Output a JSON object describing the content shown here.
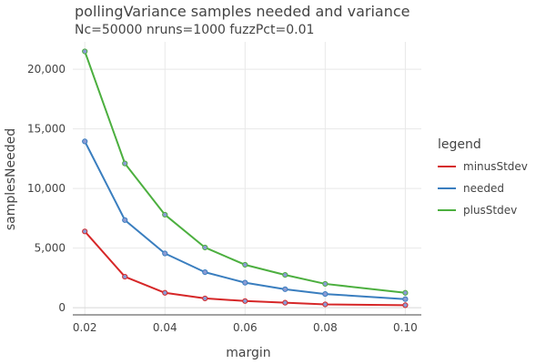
{
  "chart_data": {
    "type": "line",
    "title": "pollingVariance samples needed and variance",
    "subtitle": "Nc=50000 nruns=1000 fuzzPct=0.01",
    "xlabel": "margin",
    "ylabel": "samplesNeeded",
    "xlim": [
      0.017,
      0.104
    ],
    "ylim": [
      -600,
      22300
    ],
    "x_ticks": [
      0.02,
      0.04,
      0.06,
      0.08,
      0.1
    ],
    "x_tick_labels": [
      "0.02",
      "0.04",
      "0.06",
      "0.08",
      "0.10"
    ],
    "y_ticks": [
      0,
      5000,
      10000,
      15000,
      20000
    ],
    "y_tick_labels": [
      "0",
      "5,000",
      "10,000",
      "15,000",
      "20,000"
    ],
    "grid": true,
    "legend_title": "legend",
    "legend_position": "right",
    "x": [
      0.02,
      0.03,
      0.04,
      0.05,
      0.06,
      0.07,
      0.08,
      0.1
    ],
    "series": [
      {
        "name": "minusStdev",
        "color": "#d62728",
        "values": [
          6400,
          2600,
          1250,
          780,
          560,
          420,
          280,
          210
        ]
      },
      {
        "name": "needed",
        "color": "#3a7ebf",
        "values": [
          13950,
          7350,
          4550,
          2980,
          2100,
          1550,
          1150,
          720
        ]
      },
      {
        "name": "plusStdev",
        "color": "#4caf3f",
        "values": [
          21500,
          12100,
          7800,
          5050,
          3600,
          2750,
          2000,
          1250
        ]
      }
    ],
    "marker_fill": "#8a9bd4"
  }
}
